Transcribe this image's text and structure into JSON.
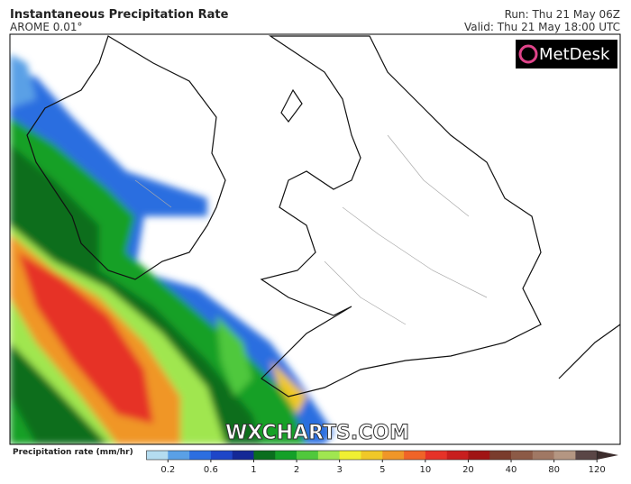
{
  "header": {
    "title": "Instantaneous Precipitation Rate",
    "subtitle": "AROME 0.01°",
    "run": "Run: Thu 21 May 06Z",
    "valid": "Valid: Thu 21 May 18:00 UTC"
  },
  "logo": "MetDesk",
  "watermark": "WXCHARTS.COM",
  "colorbar": {
    "label": "Precipitation rate (mm/hr)",
    "ticks": [
      0.2,
      0.6,
      1,
      2,
      3,
      5,
      10,
      20,
      40,
      80,
      120
    ],
    "colors": [
      "#b4dcf0",
      "#5aa0e6",
      "#2c6ee0",
      "#1e46c8",
      "#142896",
      "#0a6e1e",
      "#14a028",
      "#50c83c",
      "#a0e650",
      "#f0f032",
      "#f0c828",
      "#f09628",
      "#f06428",
      "#e63228",
      "#c81e1e",
      "#a01414",
      "#7a3c2c",
      "#8c5a46",
      "#a07864",
      "#b49682",
      "#5a4646",
      "#3c2d2d"
    ]
  }
}
